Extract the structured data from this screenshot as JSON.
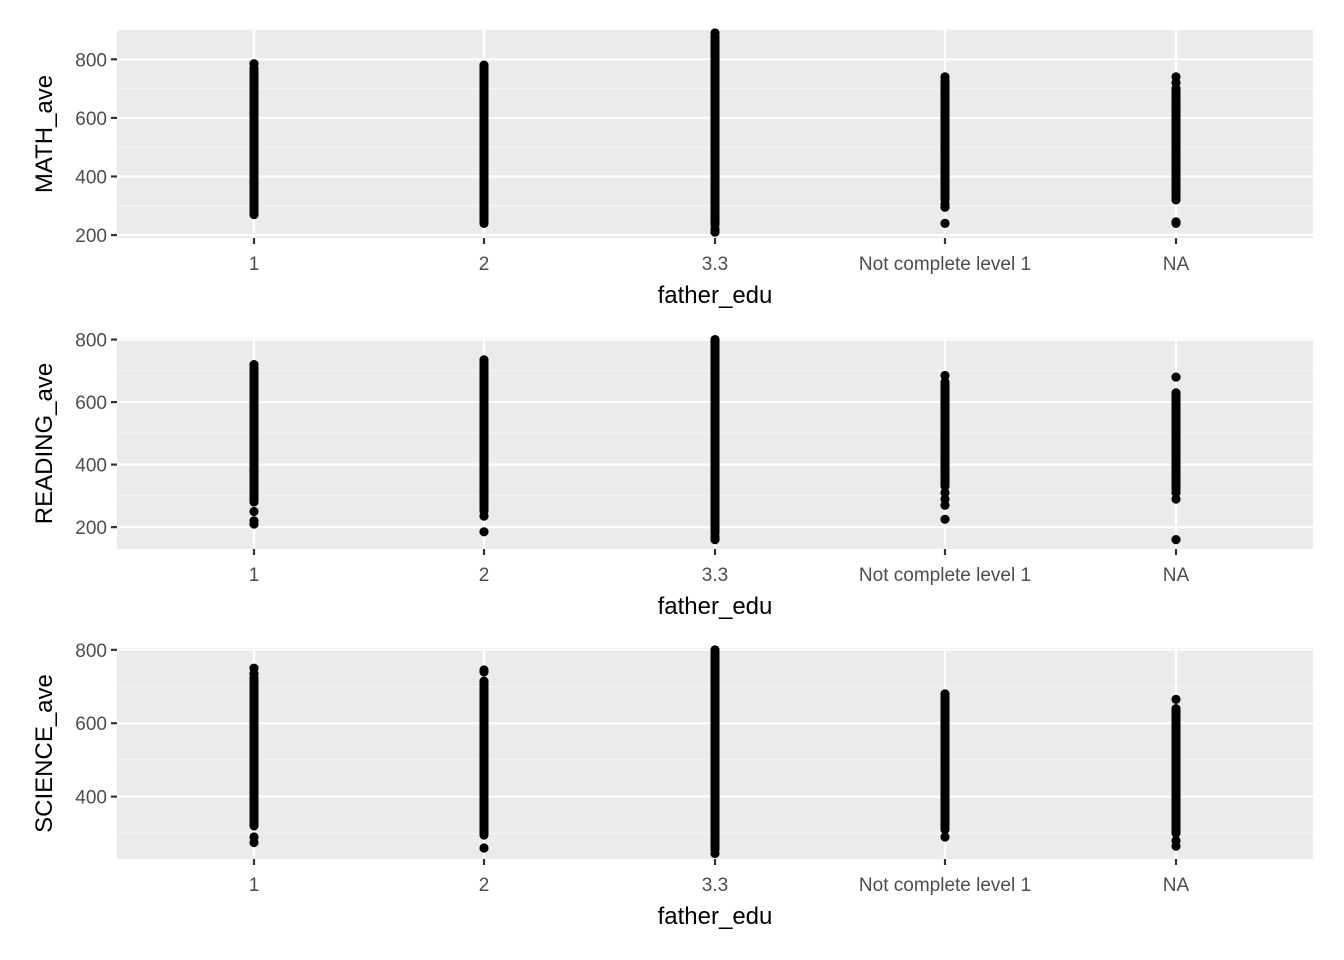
{
  "colors": {
    "panel_background": "#EBEBEB",
    "major_grid": "#FFFFFF",
    "minor_grid": "#F5F5F5",
    "points": "#000000",
    "tick_label": "#4D4D4D",
    "axis_title": "#000000"
  },
  "chart_data": [
    {
      "type": "scatter",
      "xlabel": "father_edu",
      "ylabel": "MATH_ave",
      "categories": [
        "1",
        "2",
        "3.3",
        "Not complete level 1",
        "NA"
      ],
      "yticks": [
        200,
        400,
        600,
        800
      ],
      "ylim": [
        190,
        900
      ],
      "grid": true,
      "series": [
        {
          "category": "1",
          "dense_range": [
            285,
            770
          ],
          "points": [
            270,
            280,
            785
          ]
        },
        {
          "category": "2",
          "dense_range": [
            255,
            775
          ],
          "points": [
            240,
            250,
            780
          ]
        },
        {
          "category": "3.3",
          "dense_range": [
            235,
            880
          ],
          "points": [
            210,
            220,
            240,
            890
          ]
        },
        {
          "category": "Not complete level 1",
          "dense_range": [
            320,
            730
          ],
          "points": [
            240,
            295,
            305,
            740
          ]
        },
        {
          "category": "NA",
          "dense_range": [
            330,
            690
          ],
          "points": [
            240,
            245,
            320,
            640,
            700,
            720,
            740
          ]
        }
      ]
    },
    {
      "type": "scatter",
      "xlabel": "father_edu",
      "ylabel": "READING_ave",
      "categories": [
        "1",
        "2",
        "3.3",
        "Not complete level 1",
        "NA"
      ],
      "yticks": [
        200,
        400,
        600,
        800
      ],
      "ylim": [
        130,
        805
      ],
      "grid": true,
      "series": [
        {
          "category": "1",
          "dense_range": [
            280,
            710
          ],
          "points": [
            210,
            220,
            250,
            720
          ]
        },
        {
          "category": "2",
          "dense_range": [
            250,
            730
          ],
          "points": [
            185,
            235,
            735
          ]
        },
        {
          "category": "3.3",
          "dense_range": [
            180,
            795
          ],
          "points": [
            160,
            170,
            800
          ]
        },
        {
          "category": "Not complete level 1",
          "dense_range": [
            330,
            665
          ],
          "points": [
            225,
            270,
            290,
            310,
            685
          ]
        },
        {
          "category": "NA",
          "dense_range": [
            320,
            630
          ],
          "points": [
            160,
            290,
            310,
            680
          ]
        }
      ]
    },
    {
      "type": "scatter",
      "xlabel": "father_edu",
      "ylabel": "SCIENCE_ave",
      "categories": [
        "1",
        "2",
        "3.3",
        "Not complete level 1",
        "NA"
      ],
      "yticks": [
        400,
        600,
        800
      ],
      "ylim": [
        230,
        805
      ],
      "grid": true,
      "series": [
        {
          "category": "1",
          "dense_range": [
            320,
            725
          ],
          "points": [
            275,
            290,
            735,
            750
          ]
        },
        {
          "category": "2",
          "dense_range": [
            295,
            715
          ],
          "points": [
            260,
            740,
            745
          ]
        },
        {
          "category": "3.3",
          "dense_range": [
            255,
            795
          ],
          "points": [
            245,
            800
          ]
        },
        {
          "category": "Not complete level 1",
          "dense_range": [
            310,
            675
          ],
          "points": [
            290,
            680
          ]
        },
        {
          "category": "NA",
          "dense_range": [
            300,
            640
          ],
          "points": [
            265,
            280,
            665
          ]
        }
      ]
    }
  ]
}
